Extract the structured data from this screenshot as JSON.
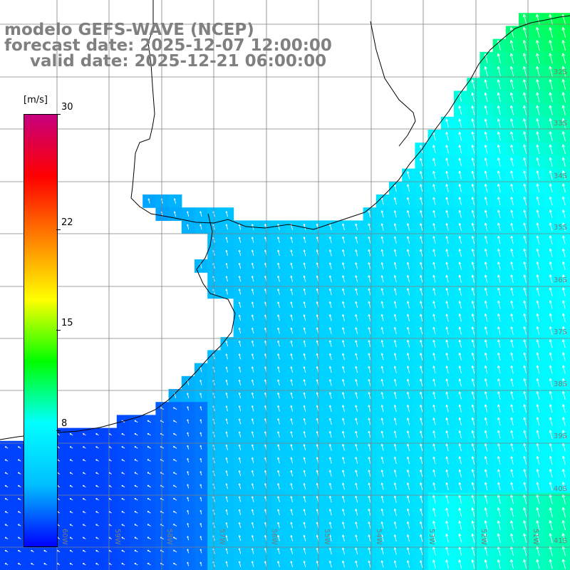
{
  "title": {
    "line1": "modelo GEFS-WAVE (NCEP)",
    "line2": "forecast date: 2025-12-07 12:00:00",
    "line3": "valid date: 2025-12-21 06:00:00"
  },
  "colorbar": {
    "units": "[m/s]",
    "min": 0,
    "max": 30,
    "ticks": [
      {
        "label": "30",
        "value": 30
      },
      {
        "label": "22",
        "value": 22
      },
      {
        "label": "15",
        "value": 15
      },
      {
        "label": "8",
        "value": 8
      }
    ],
    "stops": [
      "#0000ff",
      "#00bfff",
      "#00ffff",
      "#00ff00",
      "#ffff00",
      "#ff8000",
      "#ff0000",
      "#c8007f"
    ]
  },
  "axes": {
    "lat_labels": [
      "32S",
      "33S",
      "34S",
      "35S",
      "36S",
      "37S",
      "38S",
      "39S",
      "40S",
      "41S"
    ],
    "lon_labels": [
      "60W",
      "59W",
      "58W",
      "57W",
      "56W",
      "55W",
      "54W",
      "53W",
      "52W",
      "51W"
    ]
  },
  "field": {
    "variable": "wind speed",
    "units": "m/s",
    "range_shown": [
      2,
      12
    ]
  }
}
